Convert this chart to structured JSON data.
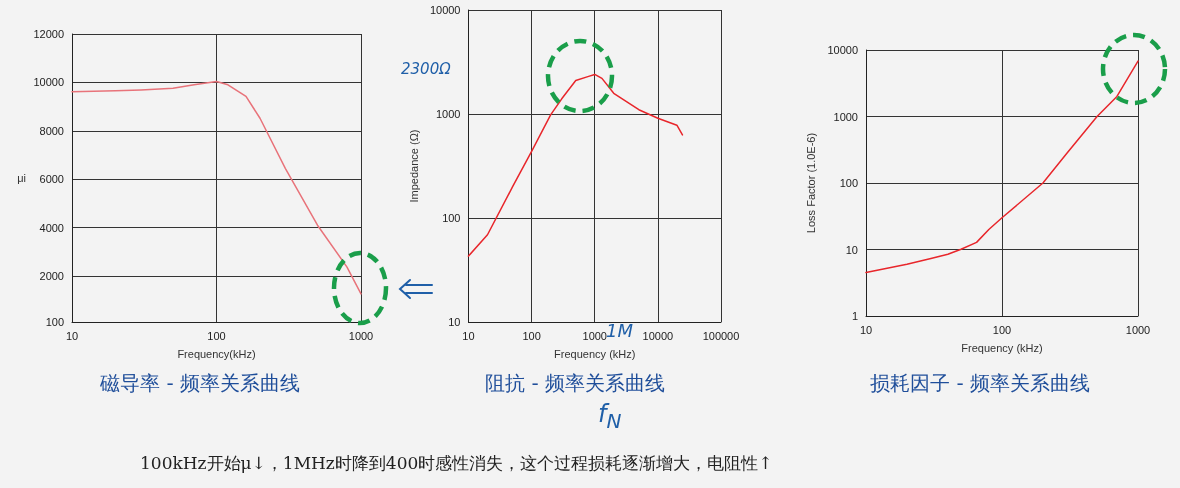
{
  "chart_data": [
    {
      "type": "line",
      "title": "磁导率 - 频率关系曲线",
      "xlabel": "Frequency(kHz)",
      "ylabel": "μi",
      "log": "x",
      "grid": true,
      "marker": "none",
      "line_style": "solid",
      "x": [
        10,
        20,
        30,
        50,
        70,
        100,
        120,
        160,
        200,
        300,
        500,
        800,
        1000
      ],
      "series": [
        {
          "color": "#e8737a",
          "values": [
            9610,
            9650,
            9690,
            9760,
            9900,
            10040,
            9900,
            9420,
            8520,
            6440,
            4100,
            2370,
            1260
          ]
        }
      ],
      "xlim": [
        10,
        1000
      ],
      "xticks": [
        10,
        100,
        1000
      ],
      "ylim": [
        100,
        12000
      ],
      "yticks": [
        100,
        2000,
        4000,
        6000,
        8000,
        10000,
        12000
      ]
    },
    {
      "type": "line",
      "title": "阻抗 - 频率关系曲线",
      "xlabel": "Frequency (kHz)",
      "ylabel": "Impedance (Ω)",
      "log": "xy",
      "grid": true,
      "marker": "none",
      "line_style": "solid",
      "x": [
        10,
        20,
        50,
        100,
        200,
        300,
        500,
        800,
        1000,
        1300,
        2000,
        5000,
        10000,
        20000,
        24500
      ],
      "series": [
        {
          "color": "#e8262b",
          "values": [
            43,
            69,
            200,
            437,
            980,
            1400,
            2100,
            2300,
            2400,
            2200,
            1580,
            1100,
            910,
            780,
            630
          ]
        }
      ],
      "xlim": [
        10,
        100000
      ],
      "xticks": [
        10,
        100,
        1000,
        10000,
        100000
      ],
      "ylim": [
        10,
        10000
      ],
      "yticks": [
        10,
        100,
        1000,
        10000
      ],
      "annotations": [
        "2300Ω",
        "1M",
        "f$_{N}$",
        "100kHz开始μ↓，1MHz时降到400时感性消失，这个过程损耗逐渐增大，电阻性↑"
      ]
    },
    {
      "type": "line",
      "title": "损耗因子 - 频率关系曲线",
      "xlabel": "Frequency (kHz)",
      "ylabel": "Loss Factor (1.0E-6)",
      "log": "xy",
      "grid": true,
      "marker": "none",
      "line_style": "solid",
      "x": [
        10,
        20,
        30,
        40,
        50,
        65,
        80,
        100,
        200,
        300,
        500,
        700,
        1000
      ],
      "series": [
        {
          "color": "#e8262b",
          "values": [
            4.5,
            6.0,
            7.3,
            8.5,
            10.1,
            12.8,
            20,
            30,
            100,
            280,
            1000,
            2000,
            6800
          ]
        }
      ],
      "xlim": [
        10,
        1000
      ],
      "xticks": [
        10,
        100,
        1000
      ],
      "ylim": [
        1,
        10000
      ],
      "yticks": [
        1,
        10,
        100,
        1000,
        10000
      ]
    }
  ]
}
